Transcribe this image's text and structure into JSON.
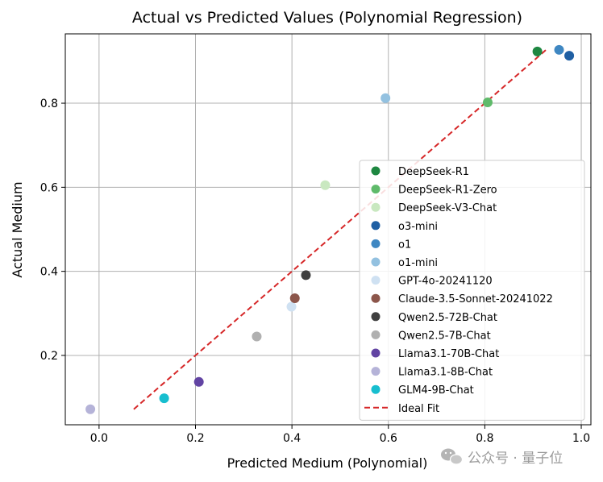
{
  "chart_data": {
    "type": "scatter",
    "title": "Actual vs Predicted Values (Polynomial Regression)",
    "xlabel": "Predicted Medium (Polynomial)",
    "ylabel": "Actual Medium",
    "xlim": [
      -0.07,
      1.02
    ],
    "ylim": [
      0.035,
      0.965
    ],
    "xticks": [
      "0.0",
      "0.2",
      "0.4",
      "0.6",
      "0.8",
      "1.0"
    ],
    "xtick_values": [
      0.0,
      0.2,
      0.4,
      0.6,
      0.8,
      1.0
    ],
    "yticks": [
      "0.2",
      "0.4",
      "0.6",
      "0.8"
    ],
    "ytick_values": [
      0.2,
      0.4,
      0.6,
      0.8
    ],
    "grid": true,
    "legend_position": "lower-right",
    "series": [
      {
        "name": "DeepSeek-R1",
        "color": "#1e8741",
        "x": 0.909,
        "y": 0.923
      },
      {
        "name": "DeepSeek-R1-Zero",
        "color": "#5fba6a",
        "x": 0.806,
        "y": 0.802
      },
      {
        "name": "DeepSeek-V3-Chat",
        "color": "#c9e8c0",
        "x": 0.469,
        "y": 0.605
      },
      {
        "name": "o3-mini",
        "color": "#1f5fa3",
        "x": 0.975,
        "y": 0.913
      },
      {
        "name": "o1",
        "color": "#3f87c2",
        "x": 0.954,
        "y": 0.927
      },
      {
        "name": "o1-mini",
        "color": "#93c1e0",
        "x": 0.594,
        "y": 0.812
      },
      {
        "name": "GPT-4o-20241120",
        "color": "#cfe1f2",
        "x": 0.399,
        "y": 0.316
      },
      {
        "name": "Claude-3.5-Sonnet-20241022",
        "color": "#8c564b",
        "x": 0.406,
        "y": 0.336
      },
      {
        "name": "Qwen2.5-72B-Chat",
        "color": "#404040",
        "x": 0.429,
        "y": 0.391
      },
      {
        "name": "Qwen2.5-7B-Chat",
        "color": "#b0b0b0",
        "x": 0.327,
        "y": 0.245
      },
      {
        "name": "Llama3.1-70B-Chat",
        "color": "#6244a3",
        "x": 0.207,
        "y": 0.137
      },
      {
        "name": "Llama3.1-8B-Chat",
        "color": "#b5b3d8",
        "x": -0.018,
        "y": 0.072
      },
      {
        "name": "GLM4-9B-Chat",
        "color": "#17becf",
        "x": 0.135,
        "y": 0.098
      }
    ],
    "ideal_fit": {
      "name": "Ideal Fit",
      "color": "#d62728",
      "x": [
        0.072,
        0.928
      ],
      "y": [
        0.072,
        0.928
      ]
    }
  },
  "watermark": {
    "text": "公众号 · 量子位",
    "icon": "wechat-icon"
  }
}
